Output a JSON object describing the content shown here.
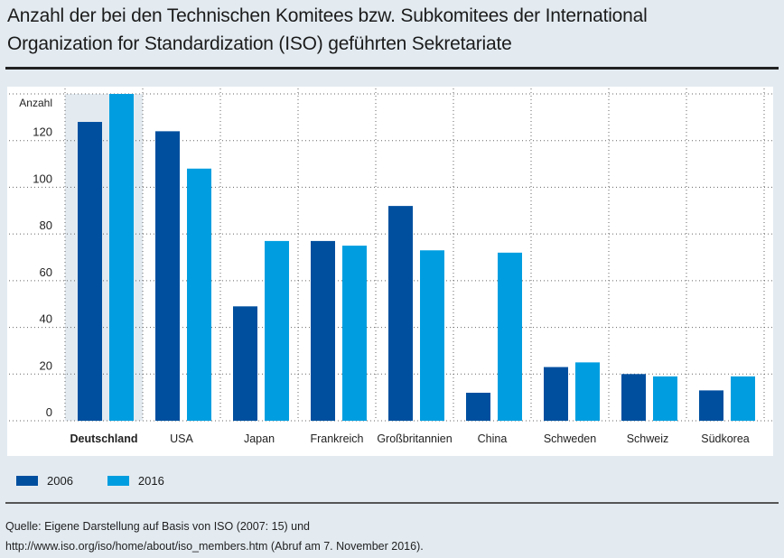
{
  "title_line1": "Anzahl der bei den Technischen Komitees bzw. Subkomitees der International",
  "title_line2": "Organization for Standardization (ISO) geführten Sekretariate",
  "colors": {
    "series_2006": "#004f9f",
    "series_2016": "#009ee0",
    "highlight": "#e3ebf1"
  },
  "chart_data": {
    "type": "bar",
    "title": "Anzahl der bei den Technischen Komitees bzw. Subkomitees der International Organization for Standardization (ISO) geführten Sekretariate",
    "ylabel": "Anzahl",
    "xlabel": "",
    "ylim": [
      0,
      140
    ],
    "yticks": [
      0,
      20,
      40,
      60,
      80,
      100,
      120
    ],
    "grid": true,
    "highlighted_category": "Deutschland",
    "categories": [
      "Deutschland",
      "USA",
      "Japan",
      "Frankreich",
      "Großbritannien",
      "China",
      "Schweden",
      "Schweiz",
      "Südkorea"
    ],
    "series": [
      {
        "name": "2006",
        "values": [
          128,
          124,
          49,
          77,
          92,
          12,
          23,
          20,
          13
        ]
      },
      {
        "name": "2016",
        "values": [
          140,
          108,
          77,
          75,
          73,
          72,
          25,
          19,
          19
        ]
      }
    ],
    "legend_position": "bottom-left"
  },
  "legend": [
    {
      "label": "2006"
    },
    {
      "label": "2016"
    }
  ],
  "source_line1": "Quelle: Eigene Darstellung auf Basis von ISO (2007: 15) und",
  "source_line2": "http://www.iso.org/iso/home/about/iso_members.htm (Abruf am 7. November 2016)."
}
